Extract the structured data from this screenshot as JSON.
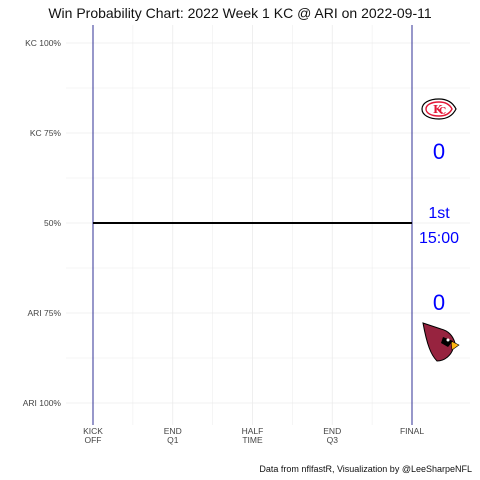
{
  "title": "Win Probability Chart: 2022 Week 1 KC @ ARI on 2022-09-11",
  "caption": "Data from nflfastR, Visualization by @LeeSharpeNFL",
  "chart_data": {
    "type": "line",
    "title": "Win Probability Chart: 2022 Week 1 KC @ ARI on 2022-09-11",
    "xlim": [
      0,
      60
    ],
    "ylim": [
      0,
      1
    ],
    "grid": true,
    "y_ticks": [
      {
        "value": 1.0,
        "label": "KC 100%"
      },
      {
        "value": 0.75,
        "label": "KC 75%"
      },
      {
        "value": 0.5,
        "label": "50%"
      },
      {
        "value": 0.25,
        "label": "ARI 75%"
      },
      {
        "value": 0.0,
        "label": "ARI 100%"
      }
    ],
    "x_ticks": [
      {
        "value": 0,
        "lines": [
          "KICK",
          "OFF"
        ]
      },
      {
        "value": 15,
        "lines": [
          "END",
          "Q1"
        ]
      },
      {
        "value": 30,
        "lines": [
          "HALF",
          "TIME"
        ]
      },
      {
        "value": 45,
        "lines": [
          "END",
          "Q3"
        ]
      },
      {
        "value": 60,
        "lines": [
          "FINAL"
        ]
      }
    ],
    "vertical_lines": [
      0,
      60
    ],
    "series": [
      {
        "x": [
          0,
          60
        ],
        "y": [
          0.5,
          0.5
        ]
      }
    ],
    "colors": {
      "line": "#000000",
      "vlines": "#1a1a8c",
      "text": "#0000ff",
      "grid": "#ebebeb"
    },
    "annotations": {
      "home_score": "0",
      "away_score": "0",
      "quarter": "1st",
      "clock": "15:00",
      "home_logo": "kc-chiefs-logo",
      "away_logo": "ari-cardinals-logo"
    }
  }
}
